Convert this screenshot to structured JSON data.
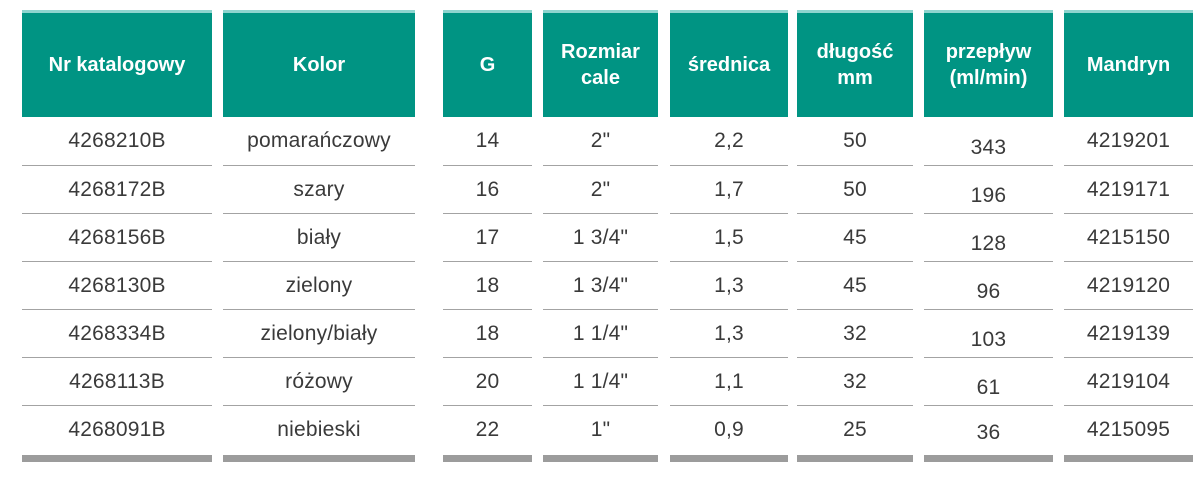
{
  "table": {
    "columns": [
      "Nr katalogowy",
      "Kolor",
      "G",
      "Rozmiar cale",
      "średnica",
      "długość mm",
      "przepływ (ml/min)",
      "Mandryn"
    ],
    "rows": [
      [
        "4268210B",
        "pomarańczowy",
        "14",
        "2\"",
        "2,2",
        "50",
        "343",
        "4219201"
      ],
      [
        "4268172B",
        "szary",
        "16",
        "2\"",
        "1,7",
        "50",
        "196",
        "4219171"
      ],
      [
        "4268156B",
        "biały",
        "17",
        "1 3/4\"",
        "1,5",
        "45",
        "128",
        "4215150"
      ],
      [
        "4268130B",
        "zielony",
        "18",
        "1 3/4\"",
        "1,3",
        "45",
        "96",
        "4219120"
      ],
      [
        "4268334B",
        "zielony/biały",
        "18",
        "1 1/4\"",
        "1,3",
        "32",
        "103",
        "4219139"
      ],
      [
        "4268113B",
        "różowy",
        "20",
        "1 1/4\"",
        "1,1",
        "32",
        "61",
        "4219104"
      ],
      [
        "4268091B",
        "niebieski",
        "22",
        "1\"",
        "0,9",
        "25",
        "36",
        "4215095"
      ]
    ],
    "colors": {
      "header_bg": "#009483",
      "header_text": "#ffffff",
      "header_top_edge": "#8ed5cf",
      "body_text": "#3a3a3a",
      "row_separator": "#a3a3a3",
      "footer_bar": "#9c9c9c"
    }
  }
}
